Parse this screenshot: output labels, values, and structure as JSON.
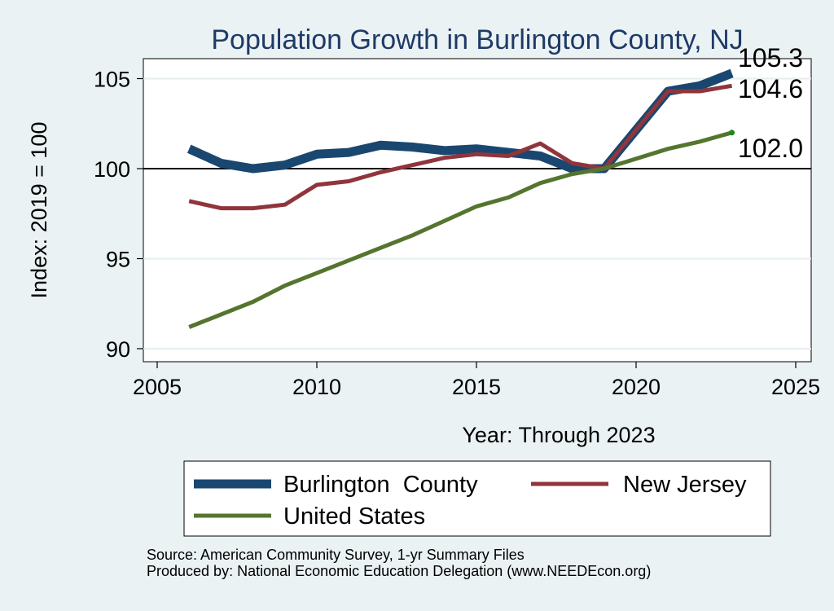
{
  "chart_data": {
    "type": "line",
    "title": "Population Growth in Burlington County, NJ",
    "xlabel": "Year: Through 2023",
    "ylabel": "Index: 2019 = 100",
    "xlim": [
      2005,
      2025
    ],
    "ylim": [
      90,
      105.5
    ],
    "x_ticks": [
      2005,
      2010,
      2015,
      2020,
      2025
    ],
    "y_ticks": [
      90,
      95,
      100,
      105
    ],
    "reference_line": 100,
    "grid": "horizontal",
    "legend_position": "bottom",
    "series": [
      {
        "name": "Burlington  County",
        "color": "#1a476f",
        "x": [
          2006,
          2007,
          2008,
          2009,
          2010,
          2011,
          2012,
          2013,
          2014,
          2015,
          2016,
          2017,
          2018,
          2019,
          2021,
          2022,
          2023
        ],
        "values": [
          101.1,
          100.3,
          100.0,
          100.2,
          100.8,
          100.9,
          101.3,
          101.2,
          101.0,
          101.1,
          100.9,
          100.7,
          100.0,
          100.0,
          104.3,
          104.6,
          105.3
        ]
      },
      {
        "name": "New Jersey",
        "color": "#90353b",
        "x": [
          2006,
          2007,
          2008,
          2009,
          2010,
          2011,
          2012,
          2013,
          2014,
          2015,
          2016,
          2017,
          2018,
          2019,
          2021,
          2022,
          2023
        ],
        "values": [
          98.2,
          97.8,
          97.8,
          98.0,
          99.1,
          99.3,
          99.8,
          100.2,
          100.6,
          100.8,
          100.7,
          101.4,
          100.3,
          100.0,
          104.3,
          104.3,
          104.6
        ]
      },
      {
        "name": "United States",
        "color": "#55752f",
        "x": [
          2006,
          2007,
          2008,
          2009,
          2010,
          2011,
          2012,
          2013,
          2014,
          2015,
          2016,
          2017,
          2018,
          2019,
          2021,
          2022,
          2023
        ],
        "values": [
          91.2,
          91.9,
          92.6,
          93.5,
          94.2,
          94.9,
          95.6,
          96.3,
          97.1,
          97.9,
          98.4,
          99.2,
          99.7,
          100.0,
          101.1,
          101.5,
          102.0
        ]
      }
    ],
    "end_labels": [
      "105.3",
      "104.6",
      "102.0"
    ],
    "source_lines": [
      "Source: American Community Survey, 1-yr Summary Files",
      "Produced by: National Economic Education Delegation (www.NEEDEcon.org)"
    ]
  }
}
